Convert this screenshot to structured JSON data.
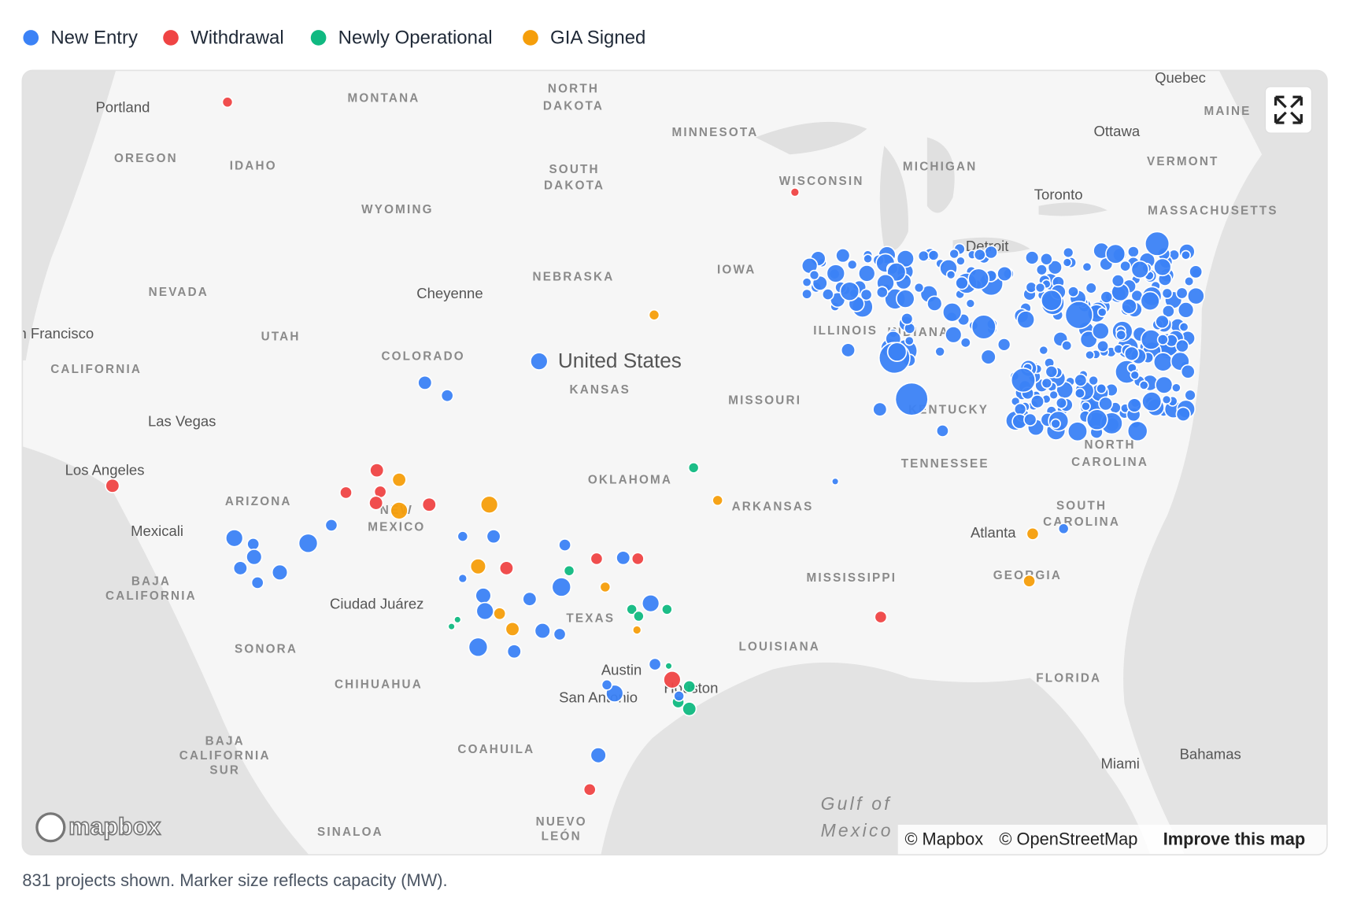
{
  "legend": [
    {
      "label": "New Entry",
      "color": "#3b82f6"
    },
    {
      "label": "Withdrawal",
      "color": "#ef4444"
    },
    {
      "label": "Newly Operational",
      "color": "#10b981"
    },
    {
      "label": "GIA Signed",
      "color": "#f59e0b"
    }
  ],
  "map": {
    "state_labels": [
      "MONTANA",
      "NORTH",
      "DAKOTA",
      "MINNESOTA",
      "OREGON",
      "IDAHO",
      "SOUTH",
      "DAKOTA",
      "WISCONSIN",
      "MICHIGAN",
      "WYOMING",
      "NEBRASKA",
      "IOWA",
      "NEVADA",
      "UTAH",
      "COLORADO",
      "KANSAS",
      "MISSOURI",
      "ILLINOIS",
      "INDIANA",
      "KENTUCKY",
      "CALIFORNIA",
      "ARIZONA",
      "NEW",
      "MEXICO",
      "OKLAHOMA",
      "ARKANSAS",
      "TENNESSEE",
      "NORTH",
      "CAROLINA",
      "SOUTH",
      "CAROLINA",
      "MISSISSIPPI",
      "GEORGIA",
      "TEXAS",
      "LOUISIANA",
      "FLORIDA",
      "MAINE",
      "VERMONT",
      "MASSACHUSETTS",
      "BAJA",
      "CALIFORNIA",
      "SONORA",
      "CHIHUAHUA",
      "COAHUILA",
      "BAJA",
      "CALIFORNIA",
      "SUR",
      "SINALOA",
      "NUEVO",
      "LEÓN"
    ],
    "city_labels": [
      "Portland",
      "Quebec",
      "Ottawa",
      "Toronto",
      "Detroit",
      "Cheyenne",
      "San Francisco",
      "Las Vegas",
      "Los Angeles",
      "Mexicali",
      "Ciudad Juárez",
      "Atlanta",
      "Austin",
      "San Antonio",
      "Houston",
      "Miami",
      "Bahamas"
    ],
    "country_label": "United States",
    "water_label": [
      "Gulf of",
      "Mexico"
    ],
    "logo": "mapbox",
    "attribution": [
      "© Mapbox",
      "© OpenStreetMap",
      "Improve this map"
    ]
  },
  "caption": "831 projects shown. Marker size reflects capacity (MW)."
}
